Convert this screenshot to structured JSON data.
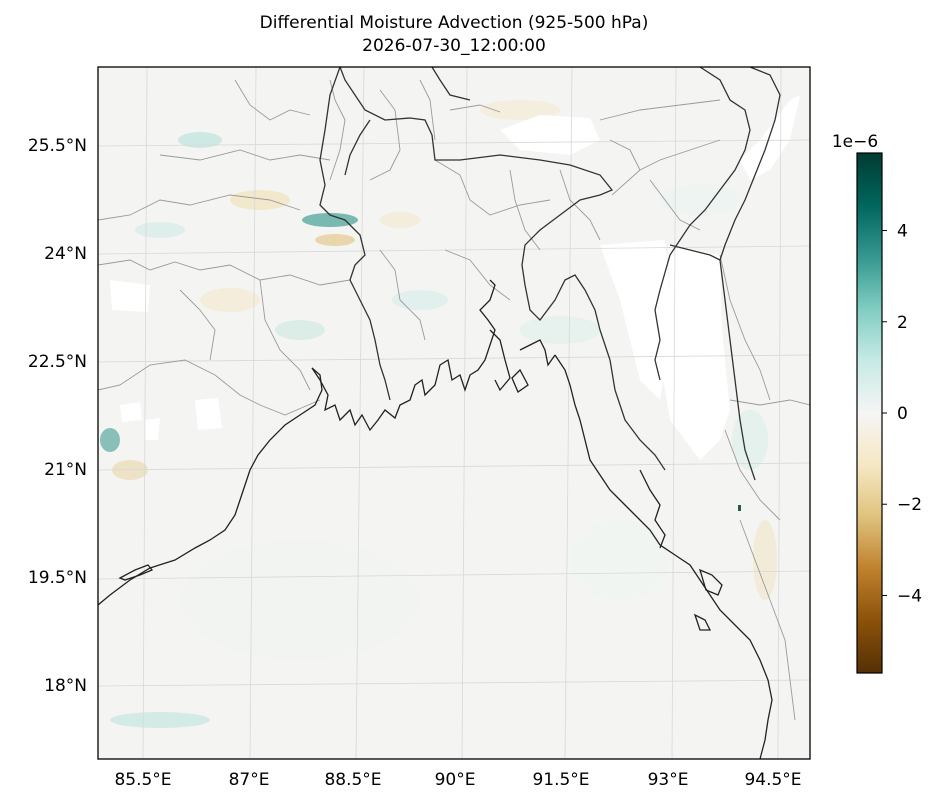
{
  "title": "Differential Moisture Advection (925-500 hPa)",
  "subtitle": "2026-07-30_12:00:00",
  "map": {
    "lon_range": [
      84.85,
      95.15
    ],
    "lat_range": [
      16.9,
      26.45
    ],
    "lon_ticks": [
      "85.5°E",
      "87°E",
      "88.5°E",
      "90°E",
      "91.5°E",
      "93°E",
      "94.5°E"
    ],
    "lat_ticks": [
      "25.5°N",
      "24°N",
      "22.5°N",
      "21°N",
      "19.5°N",
      "18°N"
    ],
    "gridlines": true,
    "features": [
      "coastlines",
      "country-borders",
      "state-borders"
    ],
    "colormap": "BrBG"
  },
  "colorbar": {
    "exponent_label": "1e−6",
    "range": [
      -5.7,
      5.7
    ],
    "ticks": [
      "4",
      "2",
      "0",
      "−2",
      "−4"
    ],
    "tick_values": [
      4,
      2,
      0,
      -2,
      -4
    ],
    "colors": [
      "#543005",
      "#8c510a",
      "#bf812d",
      "#dfc27d",
      "#f6e8c3",
      "#f5f5f5",
      "#c7eae5",
      "#80cdc1",
      "#35978f",
      "#01665e",
      "#003c30"
    ]
  }
}
